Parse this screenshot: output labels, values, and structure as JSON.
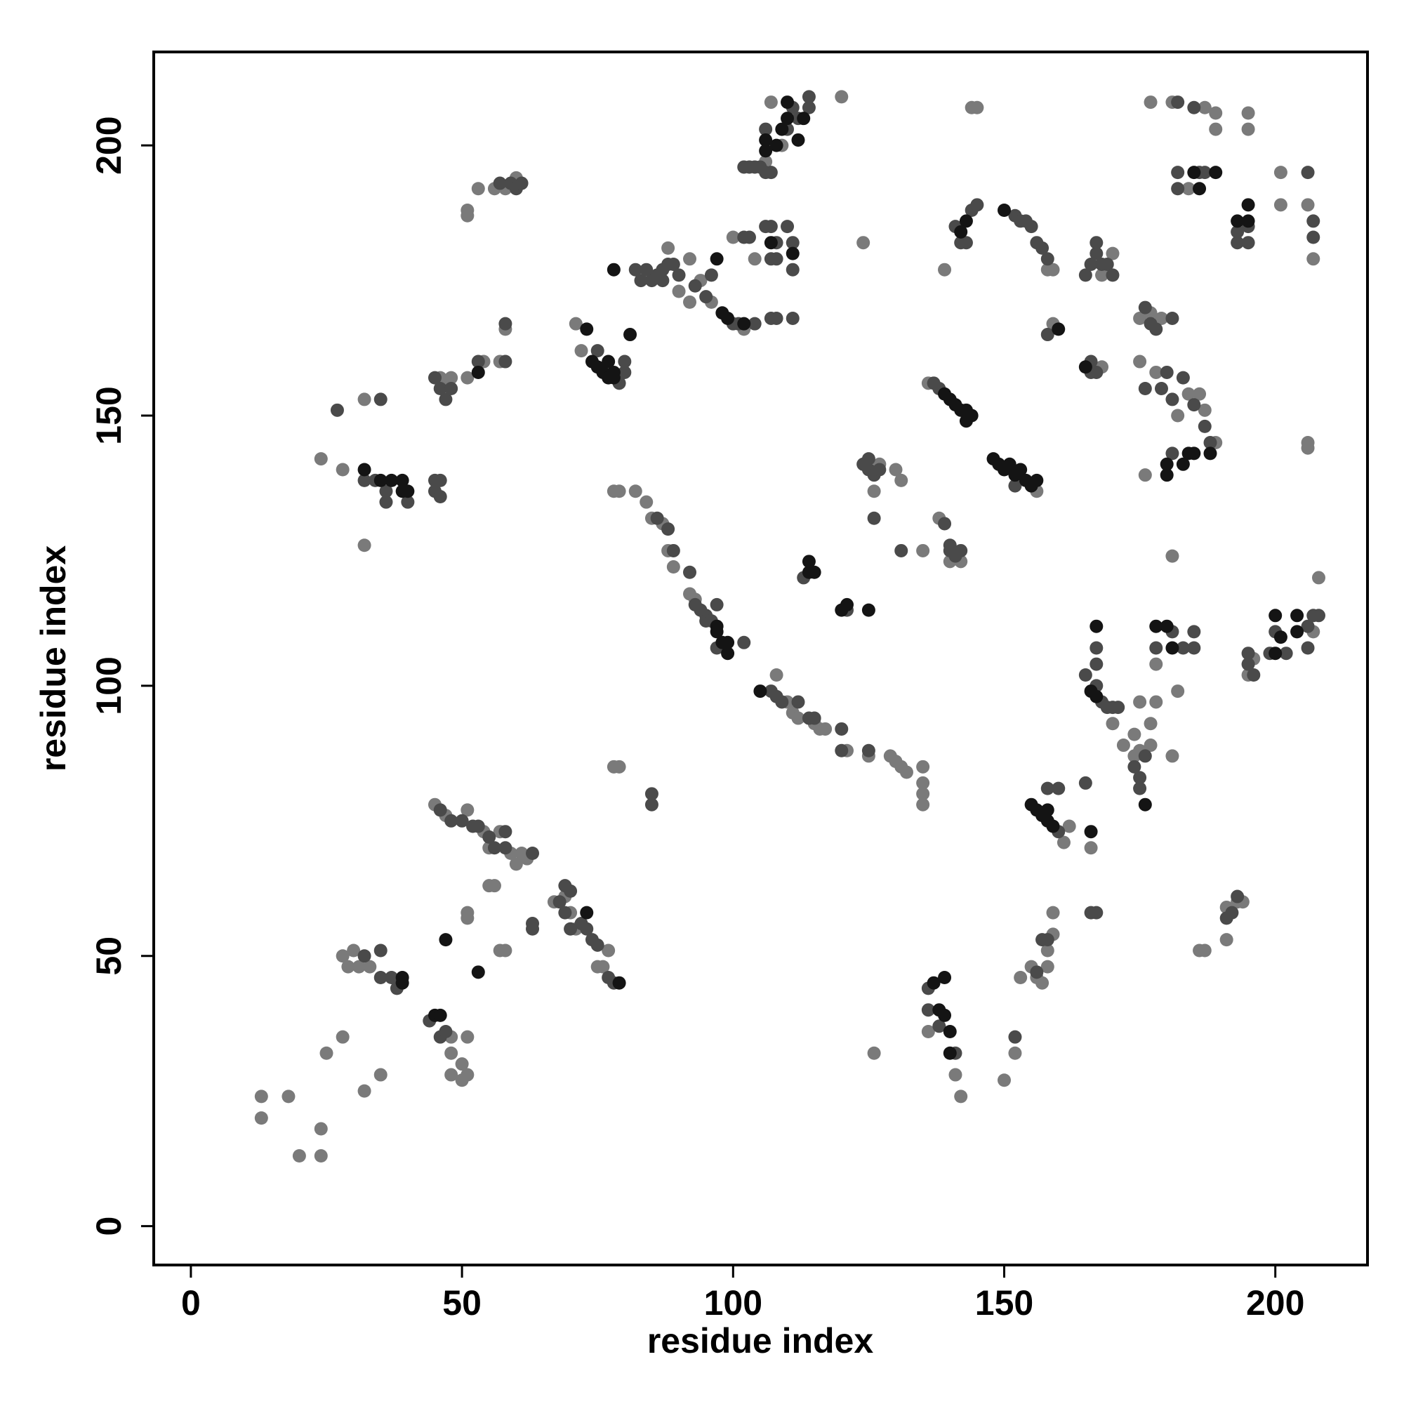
{
  "chart_data": {
    "type": "scatter",
    "xlabel": "residue index",
    "ylabel": "residue index",
    "xlim": [
      -6.85,
      217
    ],
    "ylim": [
      -7.2,
      217.3
    ],
    "xticks": [
      0,
      50,
      100,
      150,
      200
    ],
    "yticks": [
      0,
      50,
      100,
      150,
      200
    ],
    "series": [
      {
        "color": "#7a7a7a",
        "x": [
          13,
          13,
          18,
          20,
          24,
          24,
          25,
          28,
          32,
          35,
          28,
          29,
          30,
          31,
          33,
          48,
          48,
          50,
          50,
          51,
          51,
          51,
          51,
          48,
          45,
          47,
          51,
          54,
          55,
          57,
          59,
          60,
          61,
          62,
          55,
          56,
          57,
          58,
          67,
          69,
          70,
          71,
          75,
          76,
          77,
          78,
          79,
          24,
          28,
          32,
          32,
          46,
          47,
          48,
          51,
          54,
          57,
          58,
          51,
          51,
          53,
          56,
          58,
          60,
          71,
          72,
          78,
          79,
          82,
          84,
          85,
          87,
          88,
          89,
          93,
          92,
          88,
          90,
          92,
          92,
          94,
          96,
          100,
          102,
          104,
          106,
          107,
          109,
          108,
          110,
          111,
          112,
          115,
          116,
          117,
          121,
          125,
          129,
          130,
          131,
          132,
          135,
          135,
          135,
          135,
          120,
          124,
          126,
          126,
          127,
          130,
          131,
          135,
          136,
          138,
          140,
          142,
          145,
          144,
          139,
          136,
          141,
          142,
          150,
          152,
          153,
          155,
          156,
          157,
          158,
          159,
          159,
          158,
          156,
          158,
          159,
          161,
          162,
          159,
          166,
          170,
          168,
          168,
          170,
          172,
          174,
          174,
          175,
          177,
          177,
          178,
          175,
          181,
          175,
          177,
          179,
          175,
          176,
          178,
          182,
          184,
          186,
          187,
          189,
          181,
          178,
          182,
          177,
          181,
          187,
          189,
          189,
          195,
          195,
          201,
          201,
          206,
          207,
          206,
          206,
          186,
          187,
          191,
          191,
          193,
          194,
          195,
          196,
          207,
          208,
          184
        ],
        "values": [
          20,
          24,
          24,
          13,
          13,
          18,
          32,
          35,
          25,
          28,
          50,
          48,
          51,
          48,
          48,
          32,
          28,
          30,
          27,
          28,
          35,
          57,
          58,
          35,
          78,
          76,
          77,
          73,
          70,
          73,
          69,
          67,
          69,
          68,
          63,
          63,
          51,
          51,
          60,
          61,
          58,
          55,
          48,
          48,
          51,
          85,
          85,
          142,
          140,
          153,
          126,
          157,
          156,
          157,
          157,
          160,
          160,
          166,
          187,
          188,
          192,
          192,
          192,
          194,
          167,
          162,
          136,
          136,
          136,
          134,
          131,
          130,
          125,
          122,
          116,
          117,
          181,
          173,
          179,
          171,
          175,
          171,
          183,
          166,
          179,
          197,
          208,
          200,
          102,
          97,
          95,
          94,
          93,
          92,
          92,
          88,
          87,
          87,
          86,
          85,
          84,
          82,
          80,
          78,
          85,
          209,
          182,
          32,
          136,
          141,
          140,
          138,
          125,
          156,
          131,
          123,
          123,
          207,
          207,
          177,
          36,
          28,
          24,
          27,
          32,
          46,
          48,
          46,
          45,
          48,
          54,
          58,
          51,
          136,
          177,
          177,
          71,
          74,
          167,
          70,
          180,
          176,
          159,
          93,
          89,
          91,
          87,
          88,
          89,
          93,
          97,
          97,
          87,
          168,
          169,
          168,
          160,
          139,
          158,
          150,
          154,
          154,
          151,
          145,
          124,
          104,
          99,
          208,
          208,
          207,
          206,
          203,
          206,
          203,
          189,
          195,
          189,
          179,
          145,
          144,
          51,
          51,
          53,
          59,
          60,
          60,
          102,
          105,
          110,
          120,
          192
        ]
      },
      {
        "color": "#4a4a4a",
        "x": [
          32,
          35,
          35,
          37,
          38,
          44,
          46,
          47,
          46,
          48,
          50,
          52,
          53,
          55,
          56,
          58,
          58,
          63,
          63,
          63,
          68,
          69,
          70,
          69,
          70,
          72,
          73,
          74,
          75,
          77,
          78,
          85,
          85,
          27,
          32,
          34,
          36,
          36,
          40,
          35,
          45,
          45,
          46,
          46,
          45,
          46,
          47,
          48,
          53,
          58,
          58,
          57,
          59,
          60,
          61,
          75,
          79,
          80,
          80,
          82,
          83,
          84,
          85,
          86,
          87,
          87,
          88,
          89,
          90,
          93,
          95,
          96,
          100,
          101,
          102,
          103,
          104,
          86,
          88,
          89,
          92,
          93,
          94,
          95,
          95,
          96,
          97,
          102,
          97,
          107,
          108,
          109,
          112,
          114,
          115,
          120,
          120,
          125,
          102,
          103,
          104,
          105,
          106,
          107,
          106,
          110,
          111,
          112,
          114,
          114,
          106,
          107,
          107,
          107,
          108,
          108,
          108,
          110,
          111,
          111,
          111,
          113,
          121,
          124,
          125,
          125,
          126,
          126,
          127,
          131,
          137,
          138,
          139,
          140,
          140,
          141,
          142,
          141,
          142,
          143,
          144,
          145,
          136,
          136,
          138,
          141,
          152,
          152,
          153,
          154,
          155,
          156,
          157,
          158,
          152,
          156,
          158,
          157,
          160,
          158,
          160,
          158,
          165,
          166,
          167,
          165,
          166,
          167,
          167,
          168,
          169,
          170,
          166,
          166,
          167,
          165,
          167,
          168,
          169,
          170,
          171,
          167,
          167,
          174,
          175,
          175,
          176,
          176,
          177,
          178,
          181,
          176,
          179,
          180,
          181,
          183,
          185,
          187,
          188,
          181,
          178,
          181,
          183,
          185,
          185,
          182,
          185,
          182,
          182,
          186,
          187,
          193,
          193,
          195,
          195,
          206,
          207,
          207,
          191,
          192,
          193,
          195,
          195,
          196,
          199,
          200,
          202,
          206,
          206,
          207,
          208
        ],
        "values": [
          50,
          51,
          46,
          46,
          44,
          38,
          35,
          36,
          77,
          75,
          75,
          74,
          74,
          72,
          70,
          73,
          70,
          69,
          56,
          55,
          60,
          63,
          62,
          58,
          55,
          56,
          55,
          53,
          52,
          46,
          45,
          78,
          80,
          151,
          138,
          138,
          136,
          134,
          134,
          153,
          136,
          138,
          138,
          135,
          157,
          155,
          153,
          155,
          160,
          160,
          167,
          193,
          193,
          192,
          193,
          162,
          156,
          160,
          158,
          177,
          175,
          177,
          175,
          176,
          177,
          175,
          178,
          178,
          176,
          174,
          172,
          176,
          167,
          167,
          183,
          183,
          167,
          131,
          129,
          125,
          121,
          115,
          114,
          113,
          112,
          112,
          107,
          108,
          115,
          99,
          98,
          97,
          97,
          94,
          94,
          92,
          88,
          88,
          196,
          196,
          196,
          196,
          195,
          195,
          203,
          203,
          207,
          205,
          209,
          207,
          185,
          185,
          179,
          168,
          182,
          179,
          168,
          185,
          182,
          177,
          168,
          120,
          114,
          141,
          142,
          140,
          139,
          131,
          140,
          125,
          156,
          155,
          130,
          125,
          126,
          124,
          125,
          185,
          182,
          182,
          188,
          189,
          44,
          40,
          37,
          32,
          137,
          187,
          186,
          186,
          185,
          182,
          181,
          179,
          35,
          47,
          53,
          53,
          73,
          81,
          81,
          165,
          82,
          58,
          58,
          176,
          178,
          180,
          182,
          178,
          178,
          176,
          160,
          158,
          158,
          102,
          100,
          97,
          96,
          96,
          96,
          104,
          107,
          85,
          83,
          81,
          87,
          170,
          167,
          166,
          168,
          155,
          155,
          158,
          153,
          157,
          152,
          148,
          145,
          143,
          107,
          110,
          107,
          107,
          110,
          208,
          207,
          195,
          192,
          195,
          195,
          184,
          182,
          185,
          182,
          195,
          186,
          183,
          57,
          58,
          61,
          106,
          104,
          102,
          106,
          110,
          106,
          111,
          107,
          113,
          113
        ]
      },
      {
        "color": "#141414",
        "x": [
          78,
          73,
          74,
          75,
          76,
          77,
          77,
          78,
          78,
          97,
          97,
          98,
          99,
          99,
          97,
          98,
          99,
          102,
          105,
          106,
          106,
          108,
          109,
          110,
          110,
          112,
          113,
          107,
          111,
          114,
          114,
          115,
          120,
          121,
          125,
          139,
          140,
          141,
          142,
          143,
          143,
          144,
          148,
          149,
          150,
          151,
          152,
          153,
          154,
          155,
          156,
          155,
          156,
          157,
          158,
          158,
          159,
          160,
          166,
          137,
          138,
          139,
          140,
          140,
          139,
          143,
          142,
          150,
          180,
          180,
          183,
          184,
          185,
          188,
          185,
          186,
          189,
          195,
          195,
          200,
          201,
          200,
          204,
          204,
          178,
          180,
          181,
          167,
          166,
          176,
          39,
          39,
          32,
          37,
          39,
          39,
          40,
          35,
          45,
          46,
          47,
          53,
          53,
          73,
          79,
          81,
          193,
          165,
          167
        ],
        "values": [
          177,
          166,
          160,
          159,
          158,
          160,
          157,
          157,
          158,
          111,
          110,
          108,
          106,
          108,
          179,
          169,
          168,
          167,
          99,
          199,
          201,
          200,
          203,
          205,
          208,
          201,
          205,
          182,
          180,
          121,
          123,
          121,
          114,
          115,
          114,
          154,
          153,
          152,
          151,
          151,
          149,
          150,
          142,
          141,
          140,
          141,
          139,
          140,
          138,
          137,
          138,
          78,
          77,
          76,
          75,
          77,
          74,
          166,
          73,
          45,
          40,
          39,
          36,
          32,
          46,
          186,
          184,
          188,
          139,
          141,
          141,
          143,
          143,
          143,
          195,
          192,
          195,
          189,
          186,
          106,
          109,
          113,
          113,
          110,
          111,
          111,
          107,
          98,
          99,
          78,
          45,
          46,
          140,
          138,
          138,
          136,
          136,
          138,
          39,
          39,
          53,
          47,
          158,
          58,
          45,
          165,
          186,
          159,
          111
        ]
      }
    ]
  }
}
